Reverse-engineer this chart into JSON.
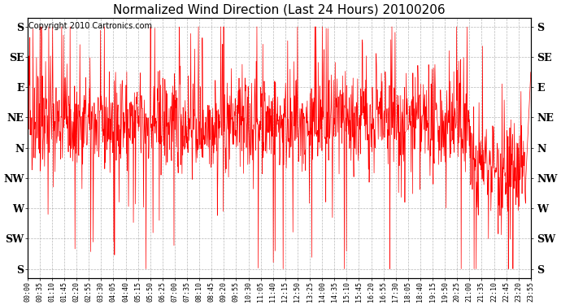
{
  "title": "Normalized Wind Direction (Last 24 Hours) 20100206",
  "copyright_text": "Copyright 2010 Cartronics.com",
  "line_color": "#ff0000",
  "background_color": "#ffffff",
  "grid_color": "#999999",
  "ytick_labels": [
    "S",
    "SE",
    "E",
    "NE",
    "N",
    "NW",
    "W",
    "SW",
    "S"
  ],
  "ytick_values": [
    8,
    7,
    6,
    5,
    4,
    3,
    2,
    1,
    0
  ],
  "ylim": [
    -0.3,
    8.3
  ],
  "xtick_labels": [
    "00:00",
    "00:35",
    "01:10",
    "01:45",
    "02:20",
    "02:55",
    "03:30",
    "04:05",
    "04:40",
    "05:15",
    "05:50",
    "06:25",
    "07:00",
    "07:35",
    "08:10",
    "08:45",
    "09:20",
    "09:55",
    "10:30",
    "11:05",
    "11:40",
    "12:15",
    "12:50",
    "13:25",
    "14:00",
    "14:35",
    "15:10",
    "15:45",
    "16:20",
    "16:55",
    "17:30",
    "18:05",
    "18:40",
    "19:15",
    "19:50",
    "20:25",
    "21:00",
    "21:35",
    "22:10",
    "22:45",
    "23:20",
    "23:55"
  ],
  "seed": 42,
  "n_points": 1440,
  "title_fontsize": 11,
  "tick_fontsize": 6,
  "copyright_fontsize": 7
}
